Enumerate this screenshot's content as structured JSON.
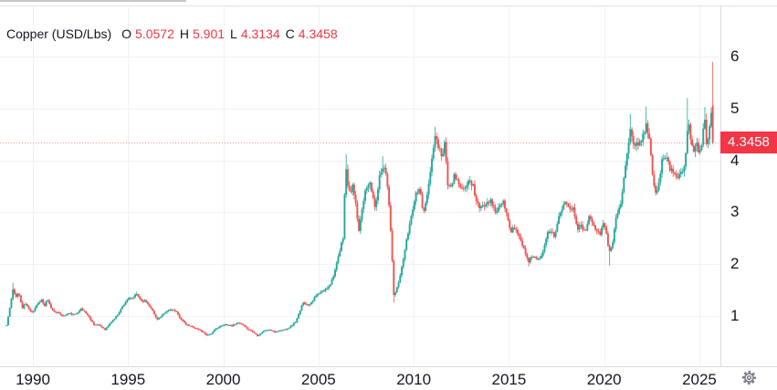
{
  "legend": {
    "symbol": "Copper (USD/Lbs)",
    "open_label": "O",
    "open": "5.0572",
    "high_label": "H",
    "high": "5.901",
    "low_label": "L",
    "low": "4.3134",
    "close_label": "C",
    "close": "4.3458",
    "text_color": "#131722",
    "value_color": "#f23645"
  },
  "price_scale": {
    "ticks": [
      6,
      5,
      4,
      3,
      2,
      1
    ],
    "last_price_label": "4.3458",
    "badge_color": "#f23645",
    "text_color": "#131722"
  },
  "time_scale": {
    "ticks": [
      1990,
      1995,
      2000,
      2005,
      2010,
      2015,
      2020,
      2025
    ],
    "text_color": "#131722"
  },
  "toolbar": {
    "settings_icon": "gear-icon",
    "icon_color": "#787b86"
  },
  "frame": {
    "background": "#ffffff",
    "grid_color": "#eef1f5",
    "border_color": "#e0e3eb",
    "separator_color": "#d8dbe0",
    "top_strip_color": "#c4c7cc"
  },
  "chart_data": {
    "type": "candlestick",
    "title": "Copper (USD/Lbs)",
    "xlabel": "",
    "ylabel": "USD/Lbs",
    "x_range": [
      1988.62,
      2025.71
    ],
    "ylim": [
      0.12,
      7.09
    ],
    "x_ticks": [
      1990,
      1995,
      2000,
      2005,
      2010,
      2015,
      2020,
      2025
    ],
    "y_ticks": [
      1,
      2,
      3,
      4,
      5,
      6
    ],
    "grid": true,
    "up_color": "#26a69a",
    "down_color": "#ef5350",
    "price_line": {
      "value": 4.3458,
      "color": "#f23645",
      "style": "dotted"
    },
    "last_candle": {
      "open": 5.0572,
      "high": 5.901,
      "low": 4.3134,
      "close": 4.3458,
      "direction": "down"
    },
    "anchors": [
      [
        1988.62,
        0.82
      ],
      [
        1988.8,
        1.18
      ],
      [
        1988.95,
        1.5
      ],
      [
        1989.1,
        1.38
      ],
      [
        1989.25,
        1.45
      ],
      [
        1989.45,
        1.15
      ],
      [
        1989.6,
        1.25
      ],
      [
        1989.8,
        1.12
      ],
      [
        1990.0,
        1.08
      ],
      [
        1990.2,
        1.22
      ],
      [
        1990.45,
        1.32
      ],
      [
        1990.6,
        1.18
      ],
      [
        1990.75,
        1.32
      ],
      [
        1991.0,
        1.12
      ],
      [
        1991.3,
        1.06
      ],
      [
        1991.6,
        1.0
      ],
      [
        1991.9,
        1.05
      ],
      [
        1992.2,
        1.02
      ],
      [
        1992.5,
        1.14
      ],
      [
        1992.75,
        1.08
      ],
      [
        1993.0,
        0.95
      ],
      [
        1993.2,
        0.84
      ],
      [
        1993.5,
        0.82
      ],
      [
        1993.8,
        0.74
      ],
      [
        1994.1,
        0.88
      ],
      [
        1994.4,
        1.0
      ],
      [
        1994.7,
        1.18
      ],
      [
        1994.95,
        1.32
      ],
      [
        1995.2,
        1.34
      ],
      [
        1995.45,
        1.42
      ],
      [
        1995.7,
        1.3
      ],
      [
        1995.95,
        1.28
      ],
      [
        1996.2,
        1.16
      ],
      [
        1996.5,
        0.94
      ],
      [
        1996.75,
        0.99
      ],
      [
        1997.0,
        1.08
      ],
      [
        1997.25,
        1.14
      ],
      [
        1997.5,
        1.08
      ],
      [
        1997.75,
        0.96
      ],
      [
        1998.0,
        0.84
      ],
      [
        1998.3,
        0.8
      ],
      [
        1998.6,
        0.76
      ],
      [
        1998.9,
        0.7
      ],
      [
        1999.15,
        0.63
      ],
      [
        1999.4,
        0.67
      ],
      [
        1999.65,
        0.77
      ],
      [
        1999.9,
        0.81
      ],
      [
        2000.15,
        0.84
      ],
      [
        2000.45,
        0.81
      ],
      [
        2000.7,
        0.87
      ],
      [
        2000.95,
        0.84
      ],
      [
        2001.2,
        0.77
      ],
      [
        2001.5,
        0.71
      ],
      [
        2001.8,
        0.62
      ],
      [
        2002.1,
        0.71
      ],
      [
        2002.4,
        0.74
      ],
      [
        2002.7,
        0.69
      ],
      [
        2002.95,
        0.72
      ],
      [
        2003.2,
        0.74
      ],
      [
        2003.5,
        0.79
      ],
      [
        2003.8,
        0.89
      ],
      [
        2004.0,
        1.06
      ],
      [
        2004.2,
        1.28
      ],
      [
        2004.4,
        1.2
      ],
      [
        2004.65,
        1.28
      ],
      [
        2004.9,
        1.4
      ],
      [
        2005.15,
        1.46
      ],
      [
        2005.4,
        1.52
      ],
      [
        2005.65,
        1.64
      ],
      [
        2005.9,
        1.92
      ],
      [
        2006.1,
        2.22
      ],
      [
        2006.3,
        2.55
      ],
      [
        2006.42,
        3.9
      ],
      [
        2006.6,
        3.35
      ],
      [
        2006.8,
        3.5
      ],
      [
        2006.95,
        3.15
      ],
      [
        2007.1,
        2.6
      ],
      [
        2007.3,
        3.1
      ],
      [
        2007.45,
        3.45
      ],
      [
        2007.65,
        3.6
      ],
      [
        2007.85,
        3.3
      ],
      [
        2008.0,
        3.05
      ],
      [
        2008.15,
        3.6
      ],
      [
        2008.35,
        3.9
      ],
      [
        2008.5,
        3.85
      ],
      [
        2008.65,
        3.45
      ],
      [
        2008.8,
        2.6
      ],
      [
        2008.95,
        1.4
      ],
      [
        2009.1,
        1.5
      ],
      [
        2009.3,
        1.8
      ],
      [
        2009.5,
        2.2
      ],
      [
        2009.7,
        2.6
      ],
      [
        2009.9,
        3.0
      ],
      [
        2010.1,
        3.35
      ],
      [
        2010.3,
        3.5
      ],
      [
        2010.5,
        3.0
      ],
      [
        2010.7,
        3.3
      ],
      [
        2010.9,
        3.85
      ],
      [
        2011.1,
        4.45
      ],
      [
        2011.3,
        4.25
      ],
      [
        2011.5,
        4.1
      ],
      [
        2011.62,
        4.35
      ],
      [
        2011.8,
        3.5
      ],
      [
        2011.95,
        3.45
      ],
      [
        2012.1,
        3.7
      ],
      [
        2012.3,
        3.6
      ],
      [
        2012.5,
        3.4
      ],
      [
        2012.7,
        3.5
      ],
      [
        2012.9,
        3.6
      ],
      [
        2013.1,
        3.55
      ],
      [
        2013.3,
        3.2
      ],
      [
        2013.5,
        3.05
      ],
      [
        2013.7,
        3.15
      ],
      [
        2013.9,
        3.25
      ],
      [
        2014.1,
        3.18
      ],
      [
        2014.3,
        3.0
      ],
      [
        2014.5,
        3.1
      ],
      [
        2014.7,
        3.18
      ],
      [
        2014.9,
        2.92
      ],
      [
        2015.1,
        2.62
      ],
      [
        2015.3,
        2.72
      ],
      [
        2015.5,
        2.55
      ],
      [
        2015.7,
        2.38
      ],
      [
        2015.9,
        2.18
      ],
      [
        2016.05,
        2.05
      ],
      [
        2016.25,
        2.18
      ],
      [
        2016.45,
        2.1
      ],
      [
        2016.65,
        2.15
      ],
      [
        2016.85,
        2.3
      ],
      [
        2017.0,
        2.58
      ],
      [
        2017.2,
        2.64
      ],
      [
        2017.4,
        2.55
      ],
      [
        2017.6,
        2.88
      ],
      [
        2017.8,
        3.05
      ],
      [
        2018.0,
        3.22
      ],
      [
        2018.2,
        3.1
      ],
      [
        2018.4,
        3.05
      ],
      [
        2018.6,
        2.7
      ],
      [
        2018.8,
        2.74
      ],
      [
        2019.0,
        2.65
      ],
      [
        2019.2,
        2.9
      ],
      [
        2019.4,
        2.84
      ],
      [
        2019.6,
        2.65
      ],
      [
        2019.8,
        2.6
      ],
      [
        2020.0,
        2.8
      ],
      [
        2020.15,
        2.55
      ],
      [
        2020.25,
        2.25
      ],
      [
        2020.45,
        2.42
      ],
      [
        2020.65,
        2.95
      ],
      [
        2020.85,
        3.1
      ],
      [
        2021.0,
        3.55
      ],
      [
        2021.2,
        4.1
      ],
      [
        2021.38,
        4.6
      ],
      [
        2021.55,
        4.3
      ],
      [
        2021.7,
        4.28
      ],
      [
        2021.85,
        4.34
      ],
      [
        2022.0,
        4.45
      ],
      [
        2022.2,
        4.7
      ],
      [
        2022.35,
        4.45
      ],
      [
        2022.5,
        3.9
      ],
      [
        2022.65,
        3.35
      ],
      [
        2022.8,
        3.45
      ],
      [
        2022.95,
        3.8
      ],
      [
        2023.1,
        4.1
      ],
      [
        2023.3,
        4.0
      ],
      [
        2023.5,
        3.8
      ],
      [
        2023.7,
        3.75
      ],
      [
        2023.85,
        3.65
      ],
      [
        2024.0,
        3.85
      ],
      [
        2024.15,
        3.8
      ],
      [
        2024.3,
        4.2
      ],
      [
        2024.42,
        4.8
      ],
      [
        2024.55,
        4.4
      ],
      [
        2024.7,
        4.15
      ],
      [
        2024.85,
        4.3
      ],
      [
        2025.0,
        4.15
      ],
      [
        2025.15,
        4.4
      ],
      [
        2025.28,
        4.85
      ],
      [
        2025.4,
        4.2
      ],
      [
        2025.5,
        4.55
      ],
      [
        2025.6,
        4.95
      ],
      [
        2025.71,
        5.05
      ]
    ],
    "wick_overrides": [
      [
        1988.95,
        "high",
        1.64
      ],
      [
        1995.45,
        "high",
        1.47
      ],
      [
        1999.15,
        "low",
        0.61
      ],
      [
        2001.8,
        "low",
        0.6
      ],
      [
        2006.42,
        "high",
        4.12
      ],
      [
        2008.35,
        "high",
        4.08
      ],
      [
        2008.98,
        "low",
        1.26
      ],
      [
        2011.1,
        "high",
        4.65
      ],
      [
        2016.05,
        "low",
        1.95
      ],
      [
        2020.28,
        "low",
        1.97
      ],
      [
        2021.38,
        "high",
        4.89
      ],
      [
        2022.2,
        "high",
        5.04
      ],
      [
        2024.38,
        "high",
        5.2
      ],
      [
        2025.28,
        "high",
        5.03
      ]
    ]
  }
}
